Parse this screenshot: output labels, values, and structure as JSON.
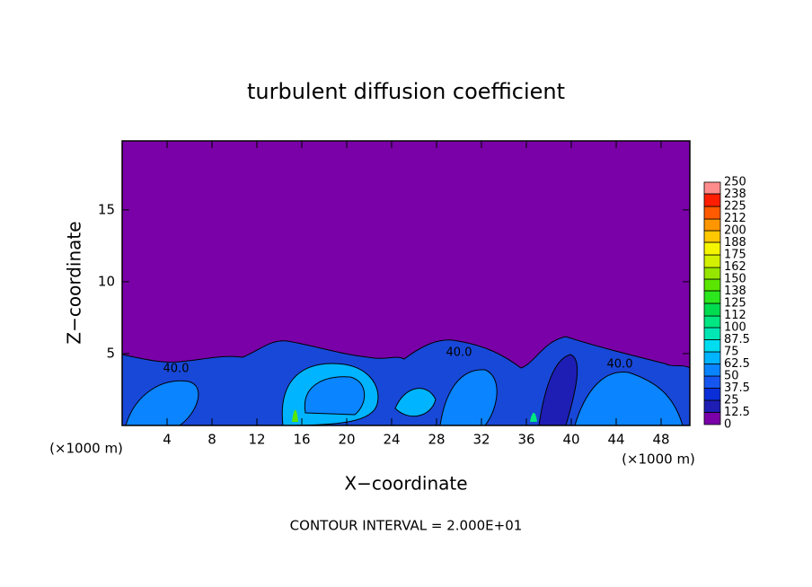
{
  "chart_data": {
    "type": "contour",
    "title": "turbulent diffusion coefficient",
    "xlabel": "X−coordinate",
    "ylabel": "Z−coordinate",
    "x_unit_left": "(×1000 m)",
    "x_unit_right": "(×1000 m)",
    "annotation": "CONTOUR INTERVAL = 2.000E+01",
    "contour_labels": [
      "40.0",
      "40.0",
      "40.0"
    ],
    "xlim": [
      0,
      50.56
    ],
    "xticks": [
      4,
      8,
      12,
      16,
      20,
      24,
      28,
      32,
      36,
      40,
      44,
      48
    ],
    "ylim": [
      0,
      19.8
    ],
    "yticks": [
      5,
      10,
      15
    ],
    "levels": [
      0,
      12.5,
      25,
      37.5,
      50,
      62.5,
      75,
      87.5,
      100,
      112,
      125,
      138,
      150,
      162,
      175,
      188,
      200,
      212,
      225,
      238,
      250
    ],
    "colors": [
      "#7a00a8",
      "#1e1eb4",
      "#0a2ed8",
      "#1656f0",
      "#0a84ff",
      "#00b4ff",
      "#00dcf0",
      "#00e6b4",
      "#00e682",
      "#00dc50",
      "#2ce61e",
      "#5ae600",
      "#96e600",
      "#d2f000",
      "#f5f500",
      "#ffc800",
      "#ff9600",
      "#ff5a00",
      "#ff1e00",
      "#ff8c8c"
    ]
  }
}
